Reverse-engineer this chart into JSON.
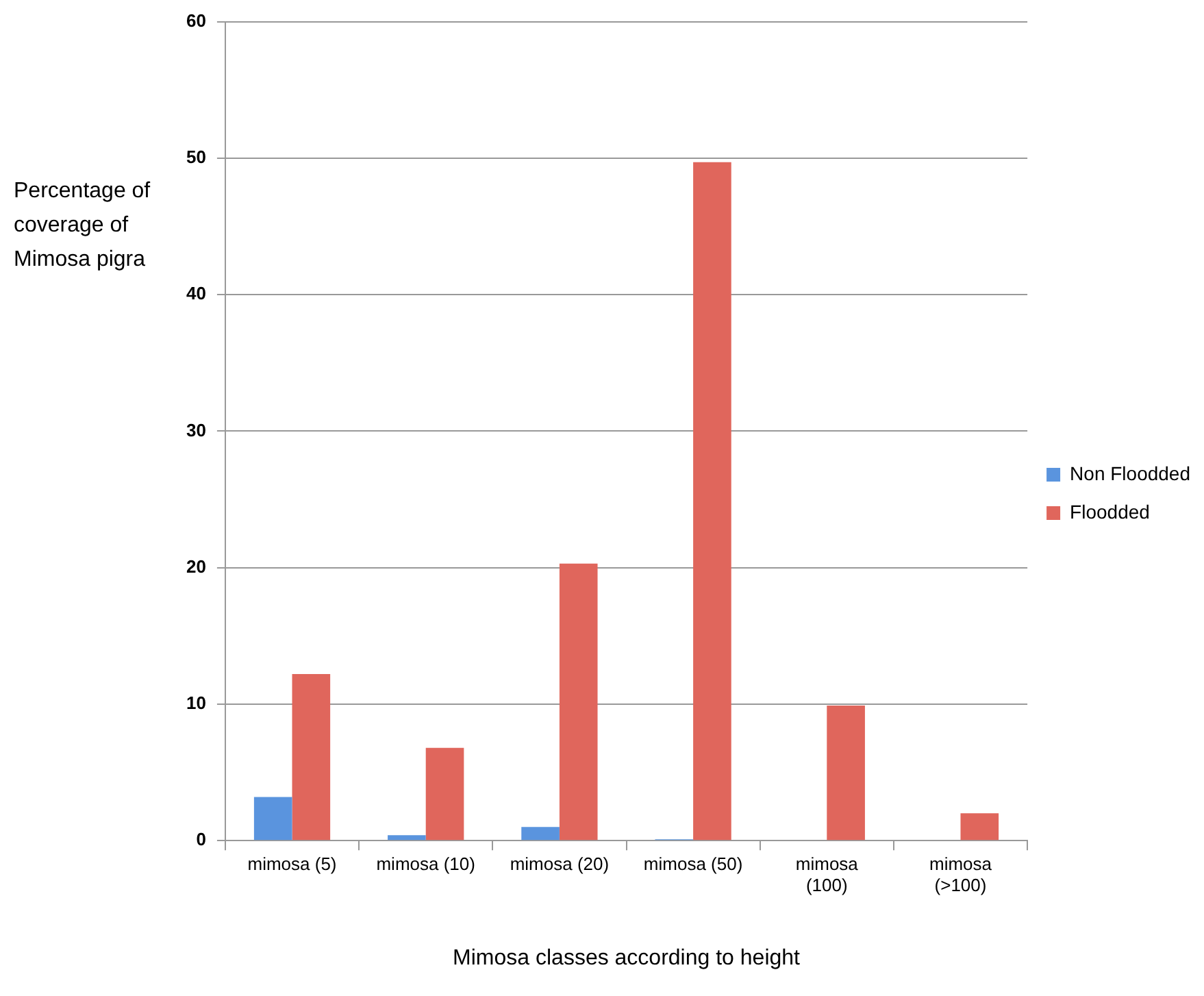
{
  "chart_data": {
    "type": "bar",
    "xlabel": "Mimosa classes according to height",
    "ylabel": "Percentage of coverage of Mimosa pigra",
    "categories": [
      "mimosa (5)",
      "mimosa (10)",
      "mimosa (20)",
      "mimosa (50)",
      "mimosa (100)",
      "mimosa (>100)"
    ],
    "series": [
      {
        "name": "Non Floodded",
        "color": "#5a94de",
        "values": [
          3.2,
          0.4,
          1.0,
          0.1,
          0,
          0
        ]
      },
      {
        "name": "Floodded",
        "color": "#e0665c",
        "values": [
          12.2,
          6.8,
          20.3,
          49.7,
          9.9,
          2.0
        ]
      }
    ],
    "ylim": [
      0,
      60
    ],
    "yticks": [
      0,
      10,
      20,
      30,
      40,
      50,
      60
    ],
    "grid": "y",
    "legend": "right"
  }
}
